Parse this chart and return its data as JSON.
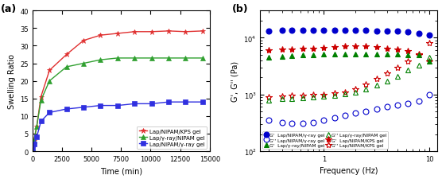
{
  "panel_a": {
    "title": "(a)",
    "xlabel": "Time (min)",
    "ylabel": "Swelling Ratio",
    "xlim": [
      0,
      15000
    ],
    "ylim": [
      0,
      40
    ],
    "yticks": [
      0,
      5,
      10,
      15,
      20,
      25,
      30,
      35,
      40
    ],
    "xticks": [
      0,
      2500,
      5000,
      7500,
      10000,
      12500,
      15000
    ],
    "series": [
      {
        "label": "Lap/NIPAM/KPS gel",
        "color": "#e03030",
        "marker": "*",
        "markersize": 5,
        "x": [
          0,
          120,
          360,
          720,
          1440,
          2880,
          4320,
          5760,
          7200,
          8640,
          10080,
          11520,
          12960,
          14400
        ],
        "y": [
          1.0,
          3.0,
          7.0,
          15.5,
          23.0,
          27.5,
          31.5,
          33.0,
          33.5,
          34.0,
          34.0,
          34.2,
          34.0,
          34.2
        ]
      },
      {
        "label": "Lap/γ-ray/NIPAM gel",
        "color": "#30a030",
        "marker": "^",
        "markersize": 4,
        "x": [
          0,
          120,
          360,
          720,
          1440,
          2880,
          4320,
          5760,
          7200,
          8640,
          10080,
          11520,
          12960,
          14400
        ],
        "y": [
          1.0,
          3.0,
          7.0,
          14.5,
          20.0,
          24.0,
          25.0,
          26.0,
          26.5,
          26.5,
          26.5,
          26.5,
          26.5,
          26.5
        ]
      },
      {
        "label": "Lap/NIPAM/γ-ray gel",
        "color": "#3030e0",
        "marker": "s",
        "markersize": 4,
        "x": [
          0,
          120,
          360,
          720,
          1440,
          2880,
          4320,
          5760,
          7200,
          8640,
          10080,
          11520,
          12960,
          14400
        ],
        "y": [
          1.0,
          2.0,
          4.0,
          8.5,
          11.0,
          12.0,
          12.5,
          13.0,
          13.0,
          13.5,
          13.5,
          14.0,
          14.0,
          14.0
        ]
      }
    ]
  },
  "panel_b": {
    "title": "(b)",
    "xlabel": "Frequency (Hz)",
    "ylabel": "G', G'' (Pa)",
    "freq": [
      0.3,
      0.4,
      0.5,
      0.63,
      0.8,
      1.0,
      1.26,
      1.58,
      2.0,
      2.51,
      3.16,
      3.98,
      5.01,
      6.31,
      7.94,
      10.0
    ],
    "series": [
      {
        "label": "G' Lap/NIPAM/γ-ray gel",
        "color": "#0000cc",
        "marker": "o",
        "filled": true,
        "markersize": 5,
        "y": [
          13000,
          13500,
          13500,
          13500,
          13500,
          13500,
          13500,
          13500,
          13500,
          13500,
          13000,
          13000,
          13000,
          12500,
          12000,
          11000
        ]
      },
      {
        "label": "G'' Lap/NIPAM/γ-ray gel",
        "color": "#0000cc",
        "marker": "o",
        "filled": false,
        "markersize": 5,
        "y": [
          350,
          320,
          310,
          310,
          320,
          350,
          390,
          430,
          470,
          510,
          560,
          600,
          650,
          700,
          760,
          1000
        ]
      },
      {
        "label": "G' Lap/NIPAM/KPS gel",
        "color": "#cc0000",
        "marker": "*",
        "filled": true,
        "markersize": 6,
        "y": [
          6000,
          6200,
          6300,
          6400,
          6500,
          6700,
          6800,
          7000,
          7000,
          7000,
          6800,
          6500,
          6200,
          5800,
          5200,
          3800
        ]
      },
      {
        "label": "G'' Lap/NIPAM/KPS gel",
        "color": "#cc0000",
        "marker": "*",
        "filled": false,
        "markersize": 6,
        "y": [
          900,
          920,
          950,
          970,
          980,
          1000,
          1050,
          1100,
          1250,
          1500,
          1900,
          2400,
          3000,
          3800,
          5000,
          8000
        ]
      },
      {
        "label": "G' Lap/γ-ray/NIPAM gel",
        "color": "#008000",
        "marker": "^",
        "filled": true,
        "markersize": 5,
        "y": [
          4500,
          4700,
          4800,
          4900,
          5000,
          5100,
          5200,
          5200,
          5200,
          5200,
          5200,
          5200,
          5200,
          5000,
          4900,
          3800
        ]
      },
      {
        "label": "G'' Lap/γ-ray/NIPAM gel",
        "color": "#008000",
        "marker": "^",
        "filled": false,
        "markersize": 5,
        "y": [
          800,
          830,
          850,
          880,
          900,
          930,
          970,
          1020,
          1100,
          1250,
          1450,
          1700,
          2100,
          2700,
          3300,
          4500
        ]
      }
    ],
    "legend": [
      {
        "label": "G'  Lap/NIPAM/γ-ray gel",
        "color": "#0000cc",
        "marker": "o",
        "filled": true
      },
      {
        "label": "G'' Lap/NIPAM/γ-ray gel",
        "color": "#0000cc",
        "marker": "o",
        "filled": false
      },
      {
        "label": "G'  Lap/γ-ray/NIPAM gel",
        "color": "#008000",
        "marker": "^",
        "filled": true
      },
      {
        "label": "G'' Lap/γ-ray/NIPAM gel",
        "color": "#008000",
        "marker": "^",
        "filled": false
      },
      {
        "label": "G'  Lap/NIPAM/KPS gel",
        "color": "#cc0000",
        "marker": "*",
        "filled": true
      },
      {
        "label": "G'' Lap/NIPAM/KPS gel",
        "color": "#cc0000",
        "marker": "*",
        "filled": false
      }
    ]
  }
}
